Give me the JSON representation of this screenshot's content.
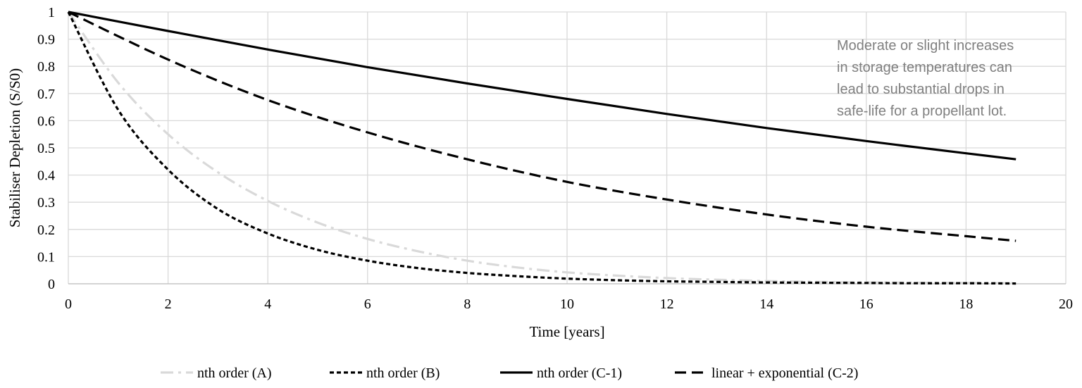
{
  "chart_data": {
    "type": "line",
    "xlabel": "Time [years]",
    "ylabel": "Stabiliser Depletion (S/S0)",
    "xlim": [
      0,
      20
    ],
    "ylim": [
      0,
      1
    ],
    "x_ticks": [
      "0",
      "2",
      "4",
      "6",
      "8",
      "10",
      "12",
      "14",
      "16",
      "18",
      "20"
    ],
    "y_ticks": [
      "0",
      "0.1",
      "0.2",
      "0.3",
      "0.4",
      "0.5",
      "0.6",
      "0.7",
      "0.8",
      "0.9",
      "1"
    ],
    "grid": true,
    "legend_position": "bottom",
    "annotation": [
      "Moderate or slight increases",
      "in storage temperatures can",
      "lead to substantial drops in",
      "safe-life for a propellant lot."
    ],
    "series": [
      {
        "name": "nth order (A)",
        "color": "#d9d9d9",
        "style": "dash-dot",
        "x": [
          0,
          1,
          2,
          3,
          4,
          5,
          6,
          7,
          8,
          9,
          10,
          11,
          12,
          13,
          14,
          15,
          16,
          17,
          18,
          19
        ],
        "y": [
          1.0,
          0.74,
          0.55,
          0.41,
          0.305,
          0.225,
          0.165,
          0.12,
          0.085,
          0.06,
          0.042,
          0.03,
          0.021,
          0.015,
          0.01,
          0.007,
          0.005,
          0.004,
          0.003,
          0.002
        ]
      },
      {
        "name": "nth order (B)",
        "color": "#000000",
        "style": "dotted",
        "x": [
          0,
          1,
          2,
          3,
          4,
          5,
          6,
          7,
          8,
          9,
          10,
          11,
          12,
          13,
          14,
          15,
          16,
          17,
          18,
          19
        ],
        "y": [
          1.0,
          0.64,
          0.42,
          0.275,
          0.185,
          0.125,
          0.085,
          0.058,
          0.04,
          0.028,
          0.019,
          0.013,
          0.009,
          0.007,
          0.005,
          0.004,
          0.003,
          0.002,
          0.002,
          0.001
        ]
      },
      {
        "name": "nth order (C-1)",
        "color": "#000000",
        "style": "solid",
        "x": [
          0,
          2,
          4,
          6,
          8,
          10,
          12,
          14,
          16,
          18,
          19
        ],
        "y": [
          1.0,
          0.93,
          0.862,
          0.797,
          0.737,
          0.68,
          0.625,
          0.573,
          0.525,
          0.48,
          0.458
        ]
      },
      {
        "name": "linear + exponential (C-2)",
        "color": "#000000",
        "style": "dashed",
        "x": [
          0,
          2,
          4,
          6,
          8,
          10,
          12,
          14,
          16,
          18,
          19
        ],
        "y": [
          1.0,
          0.825,
          0.676,
          0.557,
          0.458,
          0.375,
          0.31,
          0.255,
          0.21,
          0.175,
          0.158
        ]
      }
    ]
  }
}
